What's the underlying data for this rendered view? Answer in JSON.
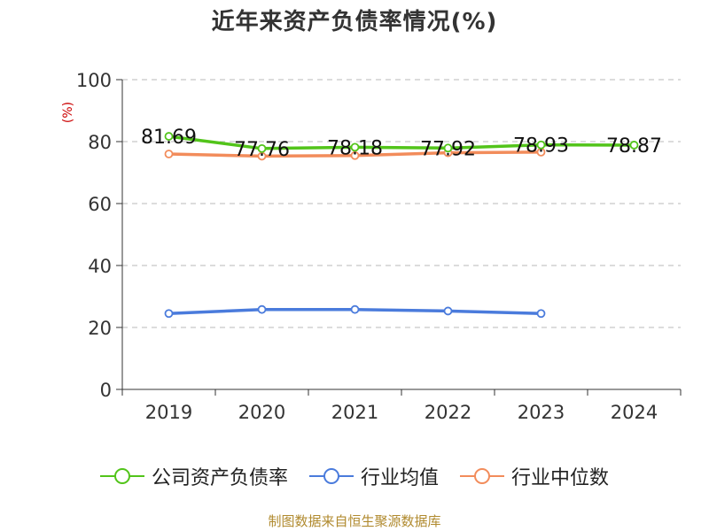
{
  "title": "近年来资产负债率情况(%)",
  "source": "制图数据来自恒生聚源数据库",
  "chart_data": {
    "type": "line",
    "title": "近年来资产负债率情况(%)",
    "ylabel": "(%)",
    "xlabel": "",
    "categories": [
      "2019",
      "2020",
      "2021",
      "2022",
      "2023",
      "2024"
    ],
    "ylim": [
      0,
      100
    ],
    "yticks": [
      0,
      20,
      40,
      60,
      80,
      100
    ],
    "grid": true,
    "legend_position": "bottom",
    "series": [
      {
        "name": "公司资产负债率",
        "color": "#52c41a",
        "values": [
          81.69,
          77.76,
          78.18,
          77.92,
          78.93,
          78.87
        ],
        "show_labels": true
      },
      {
        "name": "行业均值",
        "color": "#4a7bdc",
        "values": [
          24.5,
          25.8,
          25.8,
          25.3,
          24.5,
          null
        ],
        "show_labels": false
      },
      {
        "name": "行业中位数",
        "color": "#f28c5b",
        "values": [
          76.0,
          75.3,
          75.5,
          76.4,
          76.6,
          null
        ],
        "show_labels": false
      }
    ]
  }
}
